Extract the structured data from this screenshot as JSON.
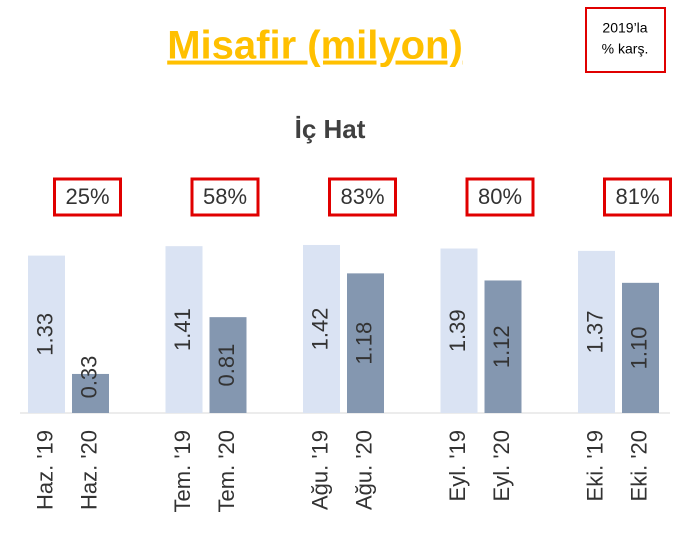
{
  "chart_data": {
    "type": "bar",
    "title": "Misafir (milyon)",
    "subtitle": "İç Hat",
    "note": [
      "2019’la",
      "% karş."
    ],
    "categories": [
      "Haz. '19",
      "Haz. '20",
      "Tem. '19",
      "Tem. '20",
      "Ağu. '19",
      "Ağu. '20",
      "Eyl. '19",
      "Eyl. '20",
      "Eki. '19",
      "Eki. '20"
    ],
    "values": [
      1.33,
      0.33,
      1.41,
      0.81,
      1.42,
      1.18,
      1.39,
      1.12,
      1.37,
      1.1
    ],
    "value_labels": [
      "1.33",
      "0.33",
      "1.41",
      "0.81",
      "1.42",
      "1.18",
      "1.39",
      "1.12",
      "1.37",
      "1.10"
    ],
    "colors": [
      "#dae3f3",
      "#8497b0",
      "#dae3f3",
      "#8497b0",
      "#dae3f3",
      "#8497b0",
      "#dae3f3",
      "#8497b0",
      "#dae3f3",
      "#8497b0"
    ],
    "annotations": [
      "25%",
      "58%",
      "83%",
      "80%",
      "81%"
    ],
    "ylim": [
      0,
      1.5
    ]
  }
}
